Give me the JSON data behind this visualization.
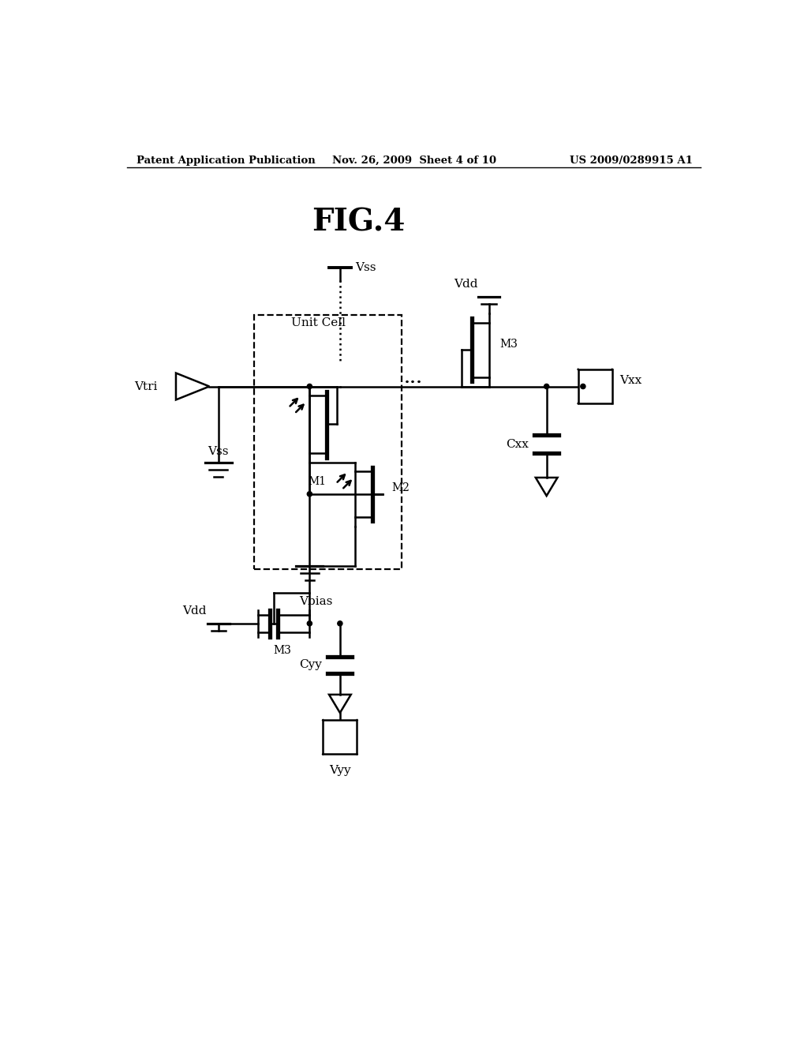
{
  "title": "FIG.4",
  "header_left": "Patent Application Publication",
  "header_center": "Nov. 26, 2009  Sheet 4 of 10",
  "header_right": "US 2009/0289915 A1",
  "bg_color": "#ffffff",
  "line_color": "#000000",
  "lw": 1.8
}
